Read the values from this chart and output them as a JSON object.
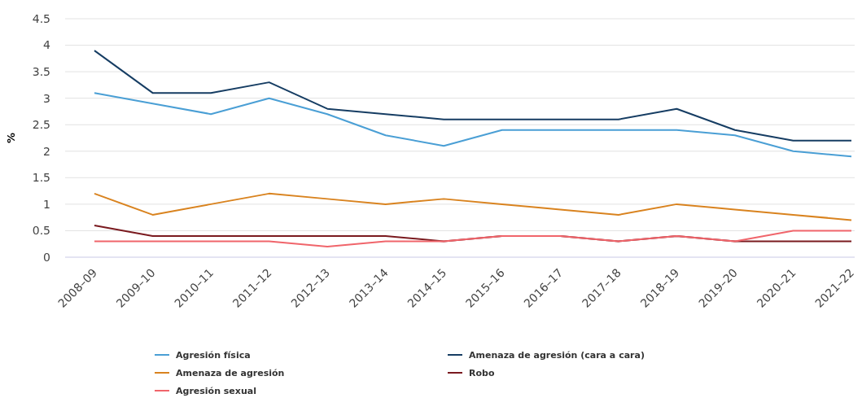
{
  "chart_data": {
    "type": "line",
    "ylabel": "%",
    "categories": [
      "2008–09",
      "2009–10",
      "2010–11",
      "2011–12",
      "2012–13",
      "2013–14",
      "2014–15",
      "2015–16",
      "2016–17",
      "2017–18",
      "2018–19",
      "2019–20",
      "2020–21",
      "2021–22"
    ],
    "series": [
      {
        "name": "Agresión física",
        "color": "#4a9fd5",
        "values": [
          3.1,
          2.9,
          2.7,
          3.0,
          2.7,
          2.3,
          2.1,
          2.4,
          2.4,
          2.4,
          2.4,
          2.3,
          2.0,
          1.9
        ]
      },
      {
        "name": "Amenaza de agresión (cara a cara)",
        "color": "#163d63",
        "values": [
          3.9,
          3.1,
          3.1,
          3.3,
          2.8,
          2.7,
          2.6,
          2.6,
          2.6,
          2.6,
          2.8,
          2.4,
          2.2,
          2.2
        ]
      },
      {
        "name": "Amenaza de agresión",
        "color": "#d9831f",
        "values": [
          1.2,
          0.8,
          1.0,
          1.2,
          1.1,
          1.0,
          1.1,
          1.0,
          0.9,
          0.8,
          1.0,
          0.9,
          0.8,
          0.7
        ]
      },
      {
        "name": "Robo",
        "color": "#7a1a1f",
        "values": [
          0.6,
          0.4,
          0.4,
          0.4,
          0.4,
          0.4,
          0.3,
          0.4,
          0.4,
          0.3,
          0.4,
          0.3,
          0.3,
          0.3
        ]
      },
      {
        "name": "Agresión sexual",
        "color": "#f0656b",
        "values": [
          0.3,
          0.3,
          0.3,
          0.3,
          0.2,
          0.3,
          0.3,
          0.4,
          0.4,
          0.3,
          0.4,
          0.3,
          0.5,
          0.5
        ]
      }
    ],
    "ylim": [
      0,
      4.5
    ],
    "yticks": [
      0,
      0.5,
      1,
      1.5,
      2,
      2.5,
      3,
      3.5,
      4,
      4.5
    ],
    "grid": "y",
    "legend": "bottom",
    "marker": "none",
    "line_style": "solid"
  }
}
